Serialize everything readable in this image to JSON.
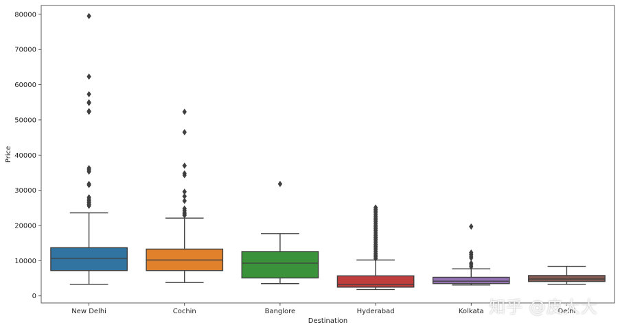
{
  "chart_data": {
    "type": "box",
    "xlabel": "Destination",
    "ylabel": "Price",
    "ylim": [
      -2000,
      82500
    ],
    "yticks": [
      0,
      10000,
      20000,
      30000,
      40000,
      50000,
      60000,
      70000,
      80000
    ],
    "grid": false,
    "categories": [
      "New Delhi",
      "Cochin",
      "Banglore",
      "Hyderabad",
      "Kolkata",
      "Delhi"
    ],
    "boxes": [
      {
        "name": "New Delhi",
        "color": "#3274a1",
        "whisker_low": 3300,
        "q1": 7200,
        "median": 10700,
        "q3": 13700,
        "whisker_high": 23600,
        "outliers": [
          79500,
          62300,
          57300,
          55000,
          54800,
          52500,
          52300,
          36300,
          35800,
          35300,
          31800,
          31500,
          28000,
          27500,
          27000,
          26500,
          26000,
          25600
        ]
      },
      {
        "name": "Cochin",
        "color": "#e1812c",
        "whisker_low": 3800,
        "q1": 7200,
        "median": 10200,
        "q3": 13300,
        "whisker_high": 22100,
        "outliers": [
          52300,
          46500,
          37000,
          34800,
          34300,
          29600,
          28300,
          27000,
          24800,
          24300,
          23800,
          23300,
          22900
        ]
      },
      {
        "name": "Banglore",
        "color": "#3a923a",
        "whisker_low": 3500,
        "q1": 5100,
        "median": 9300,
        "q3": 12600,
        "whisker_high": 17700,
        "outliers": [
          31800
        ]
      },
      {
        "name": "Hyderabad",
        "color": "#c03d3e",
        "whisker_low": 1800,
        "q1": 2500,
        "median": 3300,
        "q3": 5700,
        "whisker_high": 10200,
        "outliers": [
          25100,
          24600,
          24100,
          23600,
          23100,
          22600,
          22100,
          21600,
          21100,
          20600,
          20100,
          19600,
          19100,
          18600,
          18100,
          17600,
          17100,
          16600,
          16100,
          15600,
          15100,
          14600,
          14100,
          13600,
          13100,
          12600,
          12100,
          11600,
          11100,
          10600
        ]
      },
      {
        "name": "Kolkata",
        "color": "#9372b2",
        "whisker_low": 3100,
        "q1": 3500,
        "median": 4200,
        "q3": 5300,
        "whisker_high": 7700,
        "outliers": [
          19700,
          12300,
          11800,
          11300,
          10800,
          9300,
          8800,
          8300
        ]
      },
      {
        "name": "Delhi",
        "color": "#845b53",
        "whisker_low": 3300,
        "q1": 4100,
        "median": 4800,
        "q3": 5800,
        "whisker_high": 8400,
        "outliers": []
      }
    ]
  },
  "watermark": "知乎 @皮大大"
}
